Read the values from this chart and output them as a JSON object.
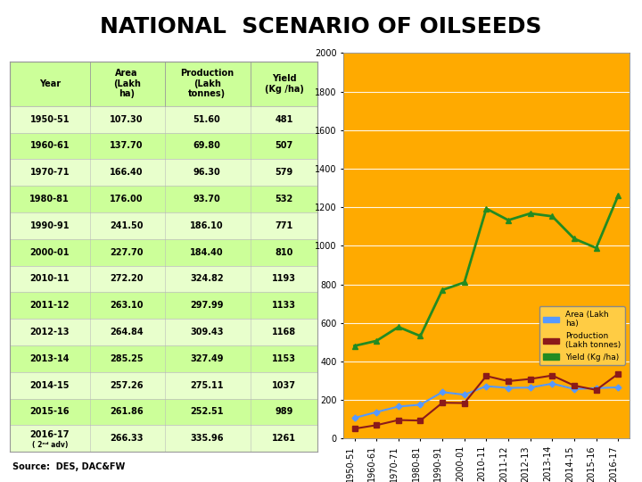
{
  "title": "NATIONAL  SCENARIO OF OILSEEDS",
  "title_bg": "#dff0a0",
  "table_bg": "#ccff99",
  "table_alt_bg": "#e8ffcc",
  "chart_bg": "#ffaa00",
  "outer_bg": "#ffffff",
  "years": [
    "1950-51",
    "1960-61",
    "1970-71",
    "1980-81",
    "1990-91",
    "2000-01",
    "2010-11",
    "2011-12",
    "2012-13",
    "2013-14",
    "2014-15",
    "2015-16",
    "2016-17"
  ],
  "area": [
    107.3,
    137.7,
    166.4,
    176.0,
    241.5,
    227.7,
    272.2,
    263.1,
    264.84,
    285.25,
    257.26,
    261.86,
    266.33
  ],
  "production": [
    51.6,
    69.8,
    96.3,
    93.7,
    186.1,
    184.4,
    324.82,
    297.99,
    309.43,
    327.49,
    275.11,
    252.51,
    335.96
  ],
  "yield_val": [
    481,
    507,
    579,
    532,
    771,
    810,
    1193,
    1133,
    1168,
    1153,
    1037,
    989,
    1261
  ],
  "source": "Source:  DES, DAC&FW",
  "area_color": "#5599ff",
  "prod_color": "#8B1a1a",
  "yield_color": "#228B22",
  "legend_area": "Area (Lakh\nha)",
  "legend_prod": "Production\n(Lakh tonnes)",
  "legend_yield": "Yield (Kg /ha)",
  "ylim": [
    0,
    2000
  ],
  "yticks": [
    0,
    200,
    400,
    600,
    800,
    1000,
    1200,
    1400,
    1600,
    1800,
    2000
  ]
}
